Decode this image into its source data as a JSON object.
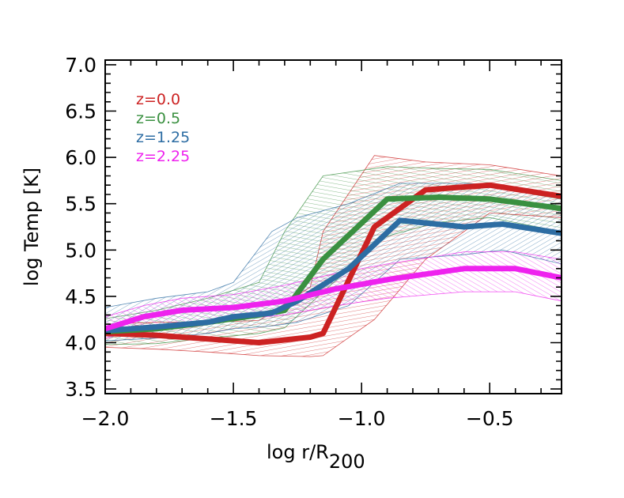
{
  "chart_data": {
    "type": "line",
    "xlabel": "log r/R",
    "xlabel_subscript": "200",
    "ylabel": "log Temp [K]",
    "xlim": [
      -2.0,
      -0.22
    ],
    "ylim": [
      3.45,
      7.05
    ],
    "xticks": [
      -2.0,
      -1.5,
      -1.0,
      -0.5
    ],
    "xtick_labels": [
      "−2.0",
      "−1.5",
      "−1.0",
      "−0.5"
    ],
    "yticks": [
      3.5,
      4.0,
      4.5,
      5.0,
      5.5,
      6.0,
      6.5,
      7.0
    ],
    "ytick_labels": [
      "3.5",
      "4.0",
      "4.5",
      "5.0",
      "5.5",
      "6.0",
      "6.5",
      "7.0"
    ],
    "legend_placement": "top-left",
    "series": [
      {
        "name": "z=0.0",
        "color": "#cc2222",
        "x": [
          -2.0,
          -1.8,
          -1.6,
          -1.4,
          -1.2,
          -1.15,
          -0.95,
          -0.75,
          -0.5,
          -0.22
        ],
        "y": [
          4.1,
          4.08,
          4.04,
          4.0,
          4.06,
          4.1,
          5.25,
          5.65,
          5.7,
          5.58
        ],
        "lo": [
          3.95,
          3.93,
          3.9,
          3.86,
          3.85,
          3.86,
          4.25,
          4.9,
          5.4,
          5.35
        ],
        "hi": [
          4.2,
          4.22,
          4.22,
          4.24,
          4.6,
          5.2,
          6.02,
          5.95,
          5.92,
          5.8
        ]
      },
      {
        "name": "z=0.5",
        "color": "#3a9040",
        "x": [
          -2.0,
          -1.8,
          -1.6,
          -1.4,
          -1.3,
          -1.15,
          -0.9,
          -0.7,
          -0.5,
          -0.22
        ],
        "y": [
          4.12,
          4.15,
          4.22,
          4.3,
          4.35,
          4.9,
          5.55,
          5.57,
          5.55,
          5.45
        ],
        "lo": [
          3.98,
          3.99,
          4.05,
          4.1,
          4.16,
          4.55,
          5.15,
          5.3,
          5.35,
          5.2
        ],
        "hi": [
          4.26,
          4.35,
          4.48,
          4.65,
          5.2,
          5.8,
          5.9,
          5.88,
          5.87,
          5.75
        ]
      },
      {
        "name": "z=1.25",
        "color": "#2d6da3",
        "x": [
          -2.0,
          -1.8,
          -1.6,
          -1.5,
          -1.35,
          -1.25,
          -1.05,
          -0.85,
          -0.6,
          -0.45,
          -0.22
        ],
        "y": [
          4.13,
          4.17,
          4.22,
          4.28,
          4.32,
          4.45,
          4.8,
          5.32,
          5.25,
          5.28,
          5.18
        ],
        "lo": [
          4.02,
          4.05,
          4.1,
          4.15,
          4.18,
          4.22,
          4.4,
          4.9,
          4.95,
          5.0,
          4.85
        ],
        "hi": [
          4.38,
          4.48,
          4.55,
          4.65,
          5.2,
          5.35,
          5.5,
          5.72,
          5.72,
          5.7,
          5.55
        ]
      },
      {
        "name": "z=2.25",
        "color": "#ee22ee",
        "x": [
          -2.0,
          -1.85,
          -1.7,
          -1.5,
          -1.3,
          -1.1,
          -0.9,
          -0.6,
          -0.4,
          -0.22
        ],
        "y": [
          4.15,
          4.28,
          4.35,
          4.38,
          4.45,
          4.58,
          4.68,
          4.8,
          4.8,
          4.7
        ],
        "lo": [
          4.05,
          4.15,
          4.22,
          4.25,
          4.3,
          4.4,
          4.48,
          4.55,
          4.55,
          4.45
        ],
        "hi": [
          4.28,
          4.4,
          4.48,
          4.52,
          4.62,
          4.75,
          4.85,
          4.98,
          4.98,
          4.9
        ]
      }
    ]
  }
}
